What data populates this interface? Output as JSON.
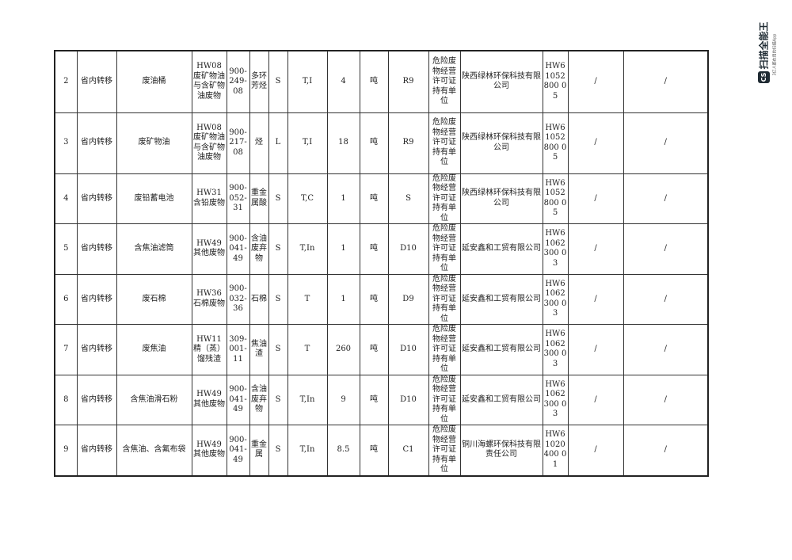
{
  "watermark": {
    "brand": "扫描全能王",
    "tagline": "3亿人都在用的扫描App",
    "logo": "CS"
  },
  "rows": [
    [
      "2",
      "省内转移",
      "废油桶",
      "HW08废矿物油与含矿物油废物",
      "900-249-08",
      "多环芳烃",
      "S",
      "T,I",
      "4",
      "吨",
      "R9",
      "危险废物经营许可证持有单位",
      "陕西绿林环保科技有限公司",
      "HW61052800 05",
      "/",
      "/"
    ],
    [
      "3",
      "省内转移",
      "废矿物油",
      "HW08废矿物油与含矿物油废物",
      "900-217-08",
      "烃",
      "L",
      "T,I",
      "18",
      "吨",
      "R9",
      "危险废物经营许可证持有单位",
      "陕西绿林环保科技有限公司",
      "HW61052800 05",
      "/",
      "/"
    ],
    [
      "4",
      "省内转移",
      "废铅蓄电池",
      "HW31含铅废物",
      "900-052-31",
      "重金属酸",
      "S",
      "T,C",
      "1",
      "吨",
      "S",
      "危险废物经营许可证持有单位",
      "陕西绿林环保科技有限公司",
      "HW61052800 05",
      "/",
      "/"
    ],
    [
      "5",
      "省内转移",
      "含焦油滤筒",
      "HW49其他废物",
      "900-041-49",
      "含油废弃物",
      "S",
      "T,In",
      "1",
      "吨",
      "D10",
      "危险废物经营许可证持有单位",
      "延安鑫和工贸有限公司",
      "HW61062300 03",
      "/",
      "/"
    ],
    [
      "6",
      "省内转移",
      "废石棉",
      "HW36石棉废物",
      "900-032-36",
      "石棉",
      "S",
      "T",
      "1",
      "吨",
      "D9",
      "危险废物经营许可证持有单位",
      "延安鑫和工贸有限公司",
      "HW61062300 03",
      "/",
      "/"
    ],
    [
      "7",
      "省内转移",
      "废焦油",
      "HW11精（蒸）馏残渣",
      "309-001-11",
      "焦油渣",
      "S",
      "T",
      "260",
      "吨",
      "D10",
      "危险废物经营许可证持有单位",
      "延安鑫和工贸有限公司",
      "HW61062300 03",
      "/",
      "/"
    ],
    [
      "8",
      "省内转移",
      "含焦油滑石粉",
      "HW49其他废物",
      "900-041-49",
      "含油废弃物",
      "S",
      "T,In",
      "9",
      "吨",
      "D10",
      "危险废物经营许可证持有单位",
      "延安鑫和工贸有限公司",
      "HW61062300 03",
      "/",
      "/"
    ],
    [
      "9",
      "省内转移",
      "含焦油、含氟布袋",
      "HW49其他废物",
      "900-041-49",
      "重金属",
      "S",
      "T,In",
      "8.5",
      "吨",
      "C1",
      "危险废物经营许可证持有单位",
      "铜川海螺环保科技有限责任公司",
      "HW61020400 01",
      "/",
      "/"
    ]
  ]
}
